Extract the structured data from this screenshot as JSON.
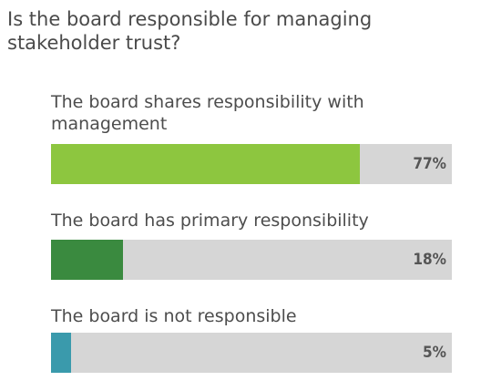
{
  "question": "Is the board responsible for managing stakeholder trust?",
  "chart_data": {
    "type": "bar",
    "orientation": "horizontal",
    "categories": [
      "The board shares responsibility with management",
      "The board has primary responsibility",
      "The board is not responsible"
    ],
    "values": [
      77,
      18,
      5
    ],
    "value_labels": [
      "77%",
      "18%",
      "5%"
    ],
    "colors": [
      "#8dc63f",
      "#3a8a3f",
      "#3a9aac"
    ],
    "xlim": [
      0,
      100
    ],
    "grid": false,
    "legend": "none"
  }
}
